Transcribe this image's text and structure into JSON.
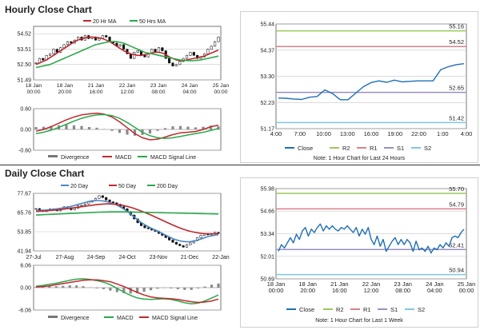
{
  "hourly": {
    "title": "Hourly Close Chart",
    "price_legend": [
      {
        "label": "20 Hr MA",
        "color": "#c0282d"
      },
      {
        "label": "50 Hrs MA",
        "color": "#2aa84a"
      }
    ],
    "macd_legend": [
      {
        "label": "Divergence",
        "color": "#777777"
      },
      {
        "label": "MACD",
        "color": "#c0282d"
      },
      {
        "label": "MACD Signal Line",
        "color": "#2aa84a"
      }
    ],
    "right_legend": [
      {
        "label": "Close",
        "color": "#1f6fb3"
      },
      {
        "label": "R2",
        "color": "#9cc75a"
      },
      {
        "label": "R1",
        "color": "#d9818a"
      },
      {
        "label": "S1",
        "color": "#9b8fc0"
      },
      {
        "label": "S2",
        "color": "#7fc9dc"
      }
    ],
    "note": "Note: 1 Hour Chart for Last 24 Hours"
  },
  "daily": {
    "title": "Daily Close Chart",
    "price_legend": [
      {
        "label": "20 Day",
        "color": "#4a86c5"
      },
      {
        "label": "50 Day",
        "color": "#c0282d"
      },
      {
        "label": "200 Day",
        "color": "#2aa84a"
      }
    ],
    "macd_legend": [
      {
        "label": "Divergence",
        "color": "#777777"
      },
      {
        "label": "MACD",
        "color": "#2aa84a"
      },
      {
        "label": "MACD Signal Line",
        "color": "#c0282d"
      }
    ],
    "right_legend": [
      {
        "label": "Close",
        "color": "#1f6fb3"
      },
      {
        "label": "R2",
        "color": "#9cc75a"
      },
      {
        "label": "R1",
        "color": "#d9818a"
      },
      {
        "label": "S1",
        "color": "#9b8fc0"
      },
      {
        "label": "S2",
        "color": "#7fc9dc"
      }
    ],
    "note": "Note: 1 Hour Chart for Last 1 Week"
  },
  "chart_data": [
    {
      "id": "hourly-price",
      "type": "candlestick",
      "title": "",
      "y_ticks": [
        "54.52",
        "53.51",
        "52.50",
        "51.49"
      ],
      "ylim": [
        51.49,
        55.0
      ],
      "x_ticks": [
        "18 Jan\n00:00",
        "18 Jan\n20:00",
        "21 Jan\n16:00",
        "22 Jan\n12:00",
        "23 Jan\n08:00",
        "24 Jan\n04:00",
        "25 Jan\n00:00"
      ],
      "close": [
        52.6,
        52.9,
        52.8,
        53.1,
        53.2,
        53.5,
        53.3,
        53.6,
        53.8,
        54.0,
        53.9,
        54.1,
        54.3,
        54.1,
        54.4,
        54.2,
        54.3,
        54.1,
        54.2,
        54.4,
        54.3,
        54.0,
        53.9,
        53.7,
        53.8,
        53.5,
        53.2,
        52.9,
        53.3,
        53.4,
        53.1,
        53.0,
        53.2,
        53.5,
        53.3,
        53.6,
        53.4,
        52.9,
        52.6,
        52.4,
        52.5,
        52.7,
        52.9,
        53.1,
        53.3,
        53.1,
        52.9,
        53.0,
        53.2,
        53.5,
        53.7,
        54.0,
        54.3
      ],
      "ma_series": [
        {
          "name": "20 Hr MA",
          "values": [
            52.5,
            52.6,
            52.7,
            52.8,
            52.95,
            53.1,
            53.25,
            53.4,
            53.55,
            53.7,
            53.85,
            54.0,
            54.1,
            54.2,
            54.25,
            54.3,
            54.3,
            54.28,
            54.25,
            54.2,
            54.1,
            54.0,
            53.85,
            53.7,
            53.55,
            53.4,
            53.3,
            53.2,
            53.15,
            53.1,
            53.1,
            53.15,
            53.2,
            53.25,
            53.3,
            53.3,
            53.25,
            53.15,
            53.0,
            52.9,
            52.8,
            52.75,
            52.75,
            52.8,
            52.85,
            52.9,
            52.95,
            53.0,
            53.05,
            53.15,
            53.25,
            53.35,
            53.45
          ]
        },
        {
          "name": "50 Hrs MA",
          "values": [
            52.3,
            52.35,
            52.4,
            52.45,
            52.5,
            52.6,
            52.7,
            52.8,
            52.9,
            53.0,
            53.1,
            53.2,
            53.3,
            53.4,
            53.5,
            53.6,
            53.7,
            53.8,
            53.85,
            53.9,
            53.95,
            54.0,
            54.0,
            54.0,
            53.95,
            53.9,
            53.8,
            53.7,
            53.6,
            53.5,
            53.4,
            53.3,
            53.25,
            53.2,
            53.15,
            53.1,
            53.05,
            53.0,
            52.95,
            52.9,
            52.85,
            52.8,
            52.78,
            52.76,
            52.75,
            52.76,
            52.78,
            52.8,
            52.85,
            52.9,
            52.95,
            53.0,
            53.05
          ]
        }
      ]
    },
    {
      "id": "hourly-macd",
      "type": "line",
      "title": "",
      "y_ticks": [
        "0.60",
        "0.00",
        "-0.60"
      ],
      "ylim": [
        -0.6,
        0.6
      ],
      "series": [
        {
          "name": "MACD",
          "values": [
            -0.05,
            0.0,
            0.08,
            0.18,
            0.28,
            0.36,
            0.42,
            0.45,
            0.47,
            0.44,
            0.36,
            0.22,
            0.05,
            -0.12,
            -0.24,
            -0.3,
            -0.28,
            -0.22,
            -0.15,
            -0.1,
            -0.08,
            -0.06,
            0.0,
            0.08,
            0.12
          ]
        },
        {
          "name": "MACD Signal Line",
          "values": [
            -0.12,
            -0.08,
            -0.02,
            0.06,
            0.15,
            0.24,
            0.32,
            0.38,
            0.42,
            0.43,
            0.4,
            0.32,
            0.2,
            0.06,
            -0.08,
            -0.18,
            -0.24,
            -0.26,
            -0.24,
            -0.2,
            -0.16,
            -0.12,
            -0.08,
            -0.03,
            0.03
          ]
        }
      ],
      "divergence": [
        0.07,
        0.08,
        0.1,
        0.12,
        0.13,
        0.12,
        0.1,
        0.07,
        0.05,
        0.01,
        -0.04,
        -0.1,
        -0.15,
        -0.18,
        -0.16,
        -0.12,
        -0.04,
        0.04,
        0.09,
        0.1,
        0.08,
        0.06,
        0.08,
        0.11,
        0.09
      ]
    },
    {
      "id": "hourly-pivot",
      "type": "line",
      "title": "",
      "y_ticks": [
        "55.44",
        "54.37",
        "53.30",
        "52.23",
        "51.17"
      ],
      "ylim": [
        51.17,
        55.44
      ],
      "x_ticks": [
        "4:00",
        "7:00",
        "10:00",
        "13:00",
        "16:00",
        "19:00",
        "22:00",
        "1:00",
        "4:00"
      ],
      "levels": [
        {
          "name": "R2",
          "value": 55.16,
          "label": "55.16"
        },
        {
          "name": "R1",
          "value": 54.52,
          "label": "54.52"
        },
        {
          "name": "S1",
          "value": 52.65,
          "label": "52.65"
        },
        {
          "name": "S2",
          "value": 51.42,
          "label": "51.42"
        }
      ],
      "series": [
        {
          "name": "Close",
          "values": [
            52.42,
            52.41,
            52.38,
            52.36,
            52.45,
            52.48,
            52.75,
            52.6,
            52.35,
            52.35,
            52.62,
            52.88,
            53.05,
            53.12,
            53.06,
            53.15,
            53.08,
            53.1,
            53.12,
            53.12,
            53.12,
            53.58,
            53.7,
            53.78,
            53.82
          ]
        }
      ]
    },
    {
      "id": "daily-price",
      "type": "candlestick",
      "title": "",
      "y_ticks": [
        "77.67",
        "65.76",
        "53.85",
        "41.94"
      ],
      "ylim": [
        41.94,
        77.67
      ],
      "x_ticks": [
        "27-Jul",
        "27-Aug",
        "24-Sep",
        "24-Oct",
        "23-Nov",
        "21-Dec",
        "22-Jan"
      ],
      "close": [
        68.2,
        67.1,
        66.5,
        67.4,
        68.0,
        67.6,
        66.8,
        67.9,
        69.3,
        68.7,
        67.5,
        68.4,
        69.9,
        70.2,
        71.0,
        72.3,
        73.1,
        74.6,
        76.2,
        75.1,
        73.6,
        72.4,
        71.8,
        70.9,
        69.4,
        68.1,
        66.3,
        64.2,
        61.8,
        59.4,
        57.6,
        56.3,
        55.7,
        54.9,
        54.1,
        52.8,
        51.6,
        50.2,
        48.7,
        47.3,
        46.1,
        45.2,
        44.3,
        45.8,
        46.9,
        48.3,
        50.1,
        51.6,
        52.7,
        51.9,
        52.6,
        53.4,
        52.8
      ],
      "ma_series": [
        {
          "name": "20 Day",
          "values": [
            67.0,
            67.1,
            67.2,
            67.3,
            67.5,
            67.8,
            68.1,
            68.4,
            68.7,
            69.1,
            69.6,
            70.2,
            70.8,
            71.4,
            72.0,
            72.6,
            73.0,
            73.2,
            73.2,
            73.0,
            72.6,
            72.0,
            71.3,
            70.4,
            69.3,
            68.0,
            66.5,
            64.8,
            63.0,
            61.2,
            59.6,
            58.2,
            57.0,
            55.9,
            54.9,
            53.9,
            52.8,
            51.7,
            50.6,
            49.6,
            48.8,
            48.2,
            47.8,
            47.6,
            47.7,
            48.0,
            48.6,
            49.3,
            50.1,
            50.8,
            51.3,
            51.7,
            52.0
          ]
        },
        {
          "name": "50 Day",
          "values": [
            66.5,
            66.6,
            66.7,
            66.8,
            67.0,
            67.2,
            67.4,
            67.6,
            67.9,
            68.2,
            68.5,
            68.8,
            69.1,
            69.4,
            69.7,
            70.0,
            70.3,
            70.6,
            70.8,
            71.0,
            71.1,
            71.1,
            71.0,
            70.8,
            70.5,
            70.1,
            69.6,
            69.0,
            68.3,
            67.5,
            66.7,
            65.8,
            64.9,
            64.0,
            63.0,
            62.0,
            61.0,
            60.0,
            59.0,
            58.0,
            57.1,
            56.2,
            55.4,
            54.7,
            54.1,
            53.6,
            53.2,
            52.9,
            52.7,
            52.6,
            52.6,
            52.6,
            52.7
          ]
        },
        {
          "name": "200 Day",
          "values": [
            64.2,
            64.3,
            64.4,
            64.5,
            64.6,
            64.7,
            64.8,
            64.9,
            65.0,
            65.1,
            65.2,
            65.3,
            65.4,
            65.5,
            65.6,
            65.7,
            65.8,
            65.9,
            66.0,
            66.05,
            66.1,
            66.15,
            66.2,
            66.2,
            66.2,
            66.2,
            66.15,
            66.1,
            66.05,
            66.0,
            65.95,
            65.9,
            65.85,
            65.8,
            65.75,
            65.7,
            65.65,
            65.6,
            65.55,
            65.5,
            65.45,
            65.4,
            65.35,
            65.3,
            65.25,
            65.2,
            65.15,
            65.1,
            65.05,
            65.0,
            64.95,
            64.9,
            64.85
          ]
        }
      ]
    },
    {
      "id": "daily-macd",
      "type": "line",
      "title": "",
      "y_ticks": [
        "6.06",
        "0.00",
        "-6.06"
      ],
      "ylim": [
        -6.06,
        6.06
      ],
      "series": [
        {
          "name": "MACD",
          "values": [
            0.4,
            0.6,
            0.9,
            1.2,
            1.6,
            2.0,
            2.3,
            2.4,
            2.2,
            1.9,
            1.5,
            0.8,
            -0.2,
            -1.2,
            -2.1,
            -2.8,
            -3.1,
            -3.2,
            -3.1,
            -3.0,
            -3.2,
            -3.6,
            -4.1,
            -4.4,
            -4.2,
            -3.6,
            -2.8,
            -2.0
          ]
        },
        {
          "name": "MACD Signal Line",
          "values": [
            0.2,
            0.3,
            0.5,
            0.8,
            1.1,
            1.4,
            1.7,
            2.0,
            2.1,
            2.1,
            1.9,
            1.6,
            1.0,
            0.3,
            -0.5,
            -1.3,
            -2.0,
            -2.5,
            -2.8,
            -2.9,
            -3.0,
            -3.2,
            -3.5,
            -3.8,
            -4.0,
            -3.9,
            -3.6,
            -3.1
          ]
        }
      ],
      "divergence": [
        0.2,
        0.3,
        0.4,
        0.4,
        0.5,
        0.6,
        0.6,
        0.4,
        0.1,
        -0.2,
        -0.4,
        -0.8,
        -1.2,
        -1.5,
        -1.6,
        -1.5,
        -1.1,
        -0.7,
        -0.3,
        -0.1,
        -0.2,
        -0.4,
        -0.6,
        -0.6,
        -0.2,
        0.3,
        0.8,
        1.1
      ]
    },
    {
      "id": "daily-pivot",
      "type": "line",
      "title": "",
      "y_ticks": [
        "55.98",
        "54.66",
        "53.34",
        "52.01",
        "50.69"
      ],
      "ylim": [
        50.69,
        55.98
      ],
      "x_ticks": [
        "18 Jan\n00:00",
        "18 Jan\n20:00",
        "21 Jan\n16:00",
        "22 Jan\n12:00",
        "23 Jan\n08:00",
        "24 Jan\n04:00",
        "25 Jan\n00:00"
      ],
      "levels": [
        {
          "name": "R2",
          "value": 55.7,
          "label": "55.70"
        },
        {
          "name": "R1",
          "value": 54.79,
          "label": "54.79"
        },
        {
          "name": "S1",
          "value": 52.41,
          "label": "52.41"
        },
        {
          "name": "S2",
          "value": 50.94,
          "label": "50.94"
        }
      ],
      "series": [
        {
          "name": "Close",
          "values": [
            52.3,
            52.7,
            52.5,
            52.8,
            53.1,
            52.8,
            53.3,
            53.0,
            53.5,
            53.7,
            53.2,
            53.6,
            53.4,
            53.7,
            53.9,
            53.5,
            53.8,
            53.6,
            53.8,
            53.6,
            53.5,
            53.7,
            53.6,
            53.8,
            53.6,
            53.4,
            53.7,
            53.2,
            53.6,
            53.3,
            53.7,
            53.0,
            52.7,
            53.2,
            52.6,
            53.0,
            52.3,
            52.6,
            52.9,
            53.1,
            52.7,
            53.0,
            52.7,
            53.0,
            52.8,
            52.3,
            52.9,
            52.4,
            52.5,
            52.3,
            52.6,
            52.2,
            52.5,
            52.4,
            52.7,
            52.5,
            52.8,
            52.6,
            53.1,
            53.2,
            53.1,
            53.4,
            53.6
          ]
        }
      ]
    }
  ]
}
